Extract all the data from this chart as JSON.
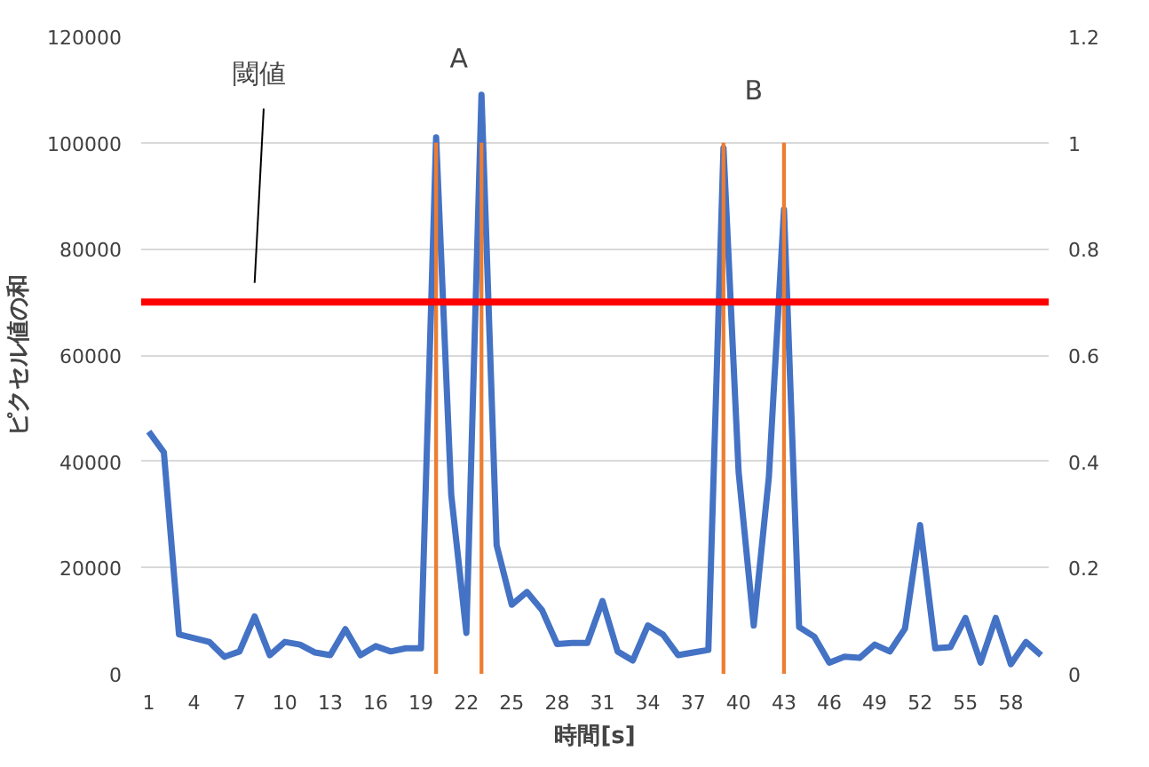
{
  "chart_data": {
    "type": "line",
    "xlabel": "時間[s]",
    "ylabel": "ピクセル値の和",
    "x": [
      1,
      2,
      3,
      4,
      5,
      6,
      7,
      8,
      9,
      10,
      11,
      12,
      13,
      14,
      15,
      16,
      17,
      18,
      19,
      20,
      21,
      22,
      23,
      24,
      25,
      26,
      27,
      28,
      29,
      30,
      31,
      32,
      33,
      34,
      35,
      36,
      37,
      38,
      39,
      40,
      41,
      42,
      43,
      44,
      45,
      46,
      47,
      48,
      49,
      50,
      51,
      52,
      53,
      54,
      55,
      56,
      57,
      58,
      59,
      60
    ],
    "xlim": [
      0.5,
      60.5
    ],
    "xticks": [
      1,
      4,
      7,
      10,
      13,
      16,
      19,
      22,
      25,
      28,
      31,
      34,
      37,
      40,
      43,
      46,
      49,
      52,
      55,
      58
    ],
    "ylim": [
      0,
      120000
    ],
    "yticks": [
      0,
      20000,
      40000,
      60000,
      80000,
      100000,
      120000
    ],
    "y2lim": [
      0,
      1.2
    ],
    "y2ticks": [
      0,
      0.2,
      0.4,
      0.6,
      0.8,
      1,
      1.2
    ],
    "grid": "y",
    "series": [
      {
        "color": "#4472c4",
        "values": [
          45600,
          41700,
          7400,
          6700,
          6000,
          3200,
          4200,
          10800,
          3500,
          6000,
          5500,
          4000,
          3500,
          8400,
          3500,
          5200,
          4200,
          4800,
          4800,
          101000,
          33700,
          7700,
          109000,
          24200,
          13000,
          15400,
          12000,
          5600,
          5800,
          5800,
          13700,
          4200,
          2500,
          9100,
          7400,
          3500,
          4000,
          4500,
          99000,
          38000,
          9100,
          37000,
          87400,
          8800,
          7000,
          2100,
          3200,
          3000,
          5500,
          4200,
          8500,
          28000,
          4800,
          5000,
          10500,
          2100,
          10500,
          1800,
          6000,
          3500
        ]
      },
      {
        "type": "bar",
        "axis": "y2",
        "color": "#ed7d31",
        "values": [
          null,
          null,
          null,
          null,
          null,
          null,
          null,
          null,
          null,
          null,
          null,
          null,
          null,
          null,
          null,
          null,
          null,
          null,
          null,
          1,
          null,
          null,
          1,
          null,
          null,
          null,
          null,
          null,
          null,
          null,
          null,
          null,
          null,
          null,
          null,
          null,
          null,
          null,
          1,
          null,
          null,
          null,
          1,
          null,
          null,
          null,
          null,
          null,
          null,
          null,
          null,
          null,
          null,
          null,
          null,
          null,
          null,
          null,
          null,
          null
        ]
      }
    ],
    "ref_lines": [
      {
        "axis": "y",
        "value": 70000,
        "label": "閾値",
        "color": "#ff0000"
      }
    ],
    "annotations": [
      "A",
      "B"
    ]
  }
}
